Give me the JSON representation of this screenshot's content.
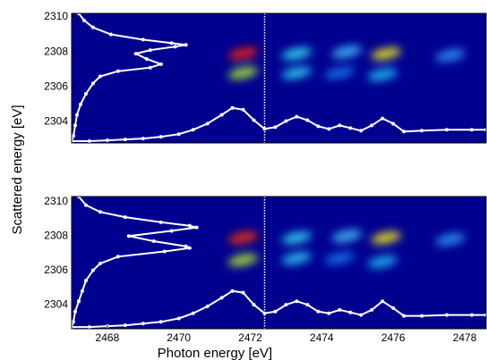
{
  "chart_data": [
    {
      "type": "heatmap",
      "background": "#00008f",
      "xlim": [
        2467,
        2478.6
      ],
      "ylim": [
        2302.8,
        2310.2
      ],
      "yticks": [
        2304,
        2306,
        2308,
        2310
      ],
      "vline": 2472.4,
      "spots": {
        "x": [
          2471.8,
          2471.8,
          2473.3,
          2473.3,
          2474.7,
          2474.5,
          2475.8,
          2475.7,
          2477.6
        ],
        "y": [
          2307.9,
          2306.8,
          2307.9,
          2306.8,
          2308.0,
          2306.8,
          2307.9,
          2306.7,
          2307.8
        ],
        "colors": [
          "#e8200a",
          "#a0e030",
          "#30d8f0",
          "#2cc8f0",
          "#40b8f8",
          "#1870e8",
          "#e8e020",
          "#20b8f0",
          "#3090f0"
        ]
      },
      "curves": [
        {
          "color": "#ffffff",
          "x": [
            2467,
            2467.5,
            2468,
            2468.5,
            2469,
            2469.5,
            2470,
            2470.4,
            2470.8,
            2471.2,
            2471.5,
            2471.8,
            2472.1,
            2472.4,
            2472.7,
            2473,
            2473.3,
            2473.6,
            2473.9,
            2474.2,
            2474.5,
            2474.8,
            2475.1,
            2475.4,
            2475.7,
            2476,
            2476.3,
            2476.8,
            2477.5,
            2478.2,
            2478.6
          ],
          "y": [
            2302.9,
            2302.9,
            2302.95,
            2303.0,
            2303.05,
            2303.15,
            2303.3,
            2303.55,
            2303.9,
            2304.4,
            2304.8,
            2304.7,
            2304.1,
            2303.6,
            2303.7,
            2304.05,
            2304.3,
            2304.1,
            2303.75,
            2303.6,
            2303.8,
            2303.65,
            2303.5,
            2303.8,
            2304.2,
            2303.9,
            2303.45,
            2303.5,
            2303.55,
            2303.55,
            2303.55
          ]
        },
        {
          "color": "#ffffff",
          "x": [
            2467.2,
            2467.35,
            2467.6,
            2468.1,
            2469.0,
            2469.8,
            2470.2,
            2469.9,
            2469.2,
            2468.8,
            2469.1,
            2469.5,
            2469.2,
            2468.3,
            2467.8,
            2467.6,
            2467.4,
            2467.25,
            2467.15,
            2467.1,
            2467.05,
            2467.0
          ],
          "y": [
            2310.2,
            2309.8,
            2309.4,
            2309.0,
            2308.7,
            2308.5,
            2308.4,
            2308.3,
            2308.1,
            2307.9,
            2307.6,
            2307.3,
            2307.1,
            2306.9,
            2306.6,
            2306.2,
            2305.6,
            2305.0,
            2304.4,
            2303.8,
            2303.2,
            2302.9
          ]
        }
      ]
    },
    {
      "type": "heatmap",
      "background": "#00008f",
      "xlim": [
        2467,
        2478.6
      ],
      "ylim": [
        2302.6,
        2310.3
      ],
      "xticks": [
        2468,
        2470,
        2472,
        2474,
        2476,
        2478
      ],
      "yticks": [
        2304,
        2306,
        2308,
        2310
      ],
      "vline": 2472.4,
      "xlabel": "Photon energy [eV]",
      "ylabel": "Scattered energy [eV]",
      "spots": {
        "x": [
          2471.8,
          2471.8,
          2473.3,
          2473.3,
          2474.7,
          2474.5,
          2475.8,
          2475.7,
          2477.6
        ],
        "y": [
          2307.9,
          2306.6,
          2307.9,
          2306.7,
          2308.0,
          2306.7,
          2307.9,
          2306.5,
          2307.8
        ],
        "colors": [
          "#e8300a",
          "#a8e030",
          "#30d0f0",
          "#2cc0f0",
          "#40b8f8",
          "#1870e8",
          "#e8e020",
          "#20b0f0",
          "#3090f0"
        ]
      },
      "curves": [
        {
          "color": "#ffffff",
          "x": [
            2467,
            2467.5,
            2468,
            2468.5,
            2469,
            2469.5,
            2470,
            2470.4,
            2470.8,
            2471.2,
            2471.5,
            2471.8,
            2472.1,
            2472.4,
            2472.7,
            2473,
            2473.3,
            2473.6,
            2473.9,
            2474.2,
            2474.5,
            2474.8,
            2475.1,
            2475.4,
            2475.7,
            2476,
            2476.3,
            2476.8,
            2477.5,
            2478.2,
            2478.6
          ],
          "y": [
            2302.7,
            2302.7,
            2302.75,
            2302.8,
            2302.9,
            2303.0,
            2303.2,
            2303.5,
            2303.9,
            2304.4,
            2304.8,
            2304.7,
            2304.0,
            2303.5,
            2303.6,
            2304.0,
            2304.2,
            2304.0,
            2303.6,
            2303.5,
            2303.7,
            2303.55,
            2303.4,
            2303.7,
            2304.2,
            2303.8,
            2303.35,
            2303.35,
            2303.4,
            2303.4,
            2303.4
          ]
        },
        {
          "color": "#ffffff",
          "x": [
            2467.2,
            2467.4,
            2467.8,
            2468.5,
            2469.5,
            2470.3,
            2470.5,
            2469.8,
            2468.6,
            2469.3,
            2470.2,
            2470.3,
            2469.6,
            2468.3,
            2467.8,
            2467.6,
            2467.4,
            2467.3,
            2467.2,
            2467.1,
            2467.05,
            2467.0
          ],
          "y": [
            2310.3,
            2309.8,
            2309.4,
            2309.1,
            2308.8,
            2308.6,
            2308.5,
            2308.3,
            2308.0,
            2307.7,
            2307.4,
            2307.3,
            2307.1,
            2306.8,
            2306.4,
            2306.0,
            2305.4,
            2304.8,
            2304.2,
            2303.6,
            2303.0,
            2302.7
          ]
        }
      ]
    }
  ]
}
